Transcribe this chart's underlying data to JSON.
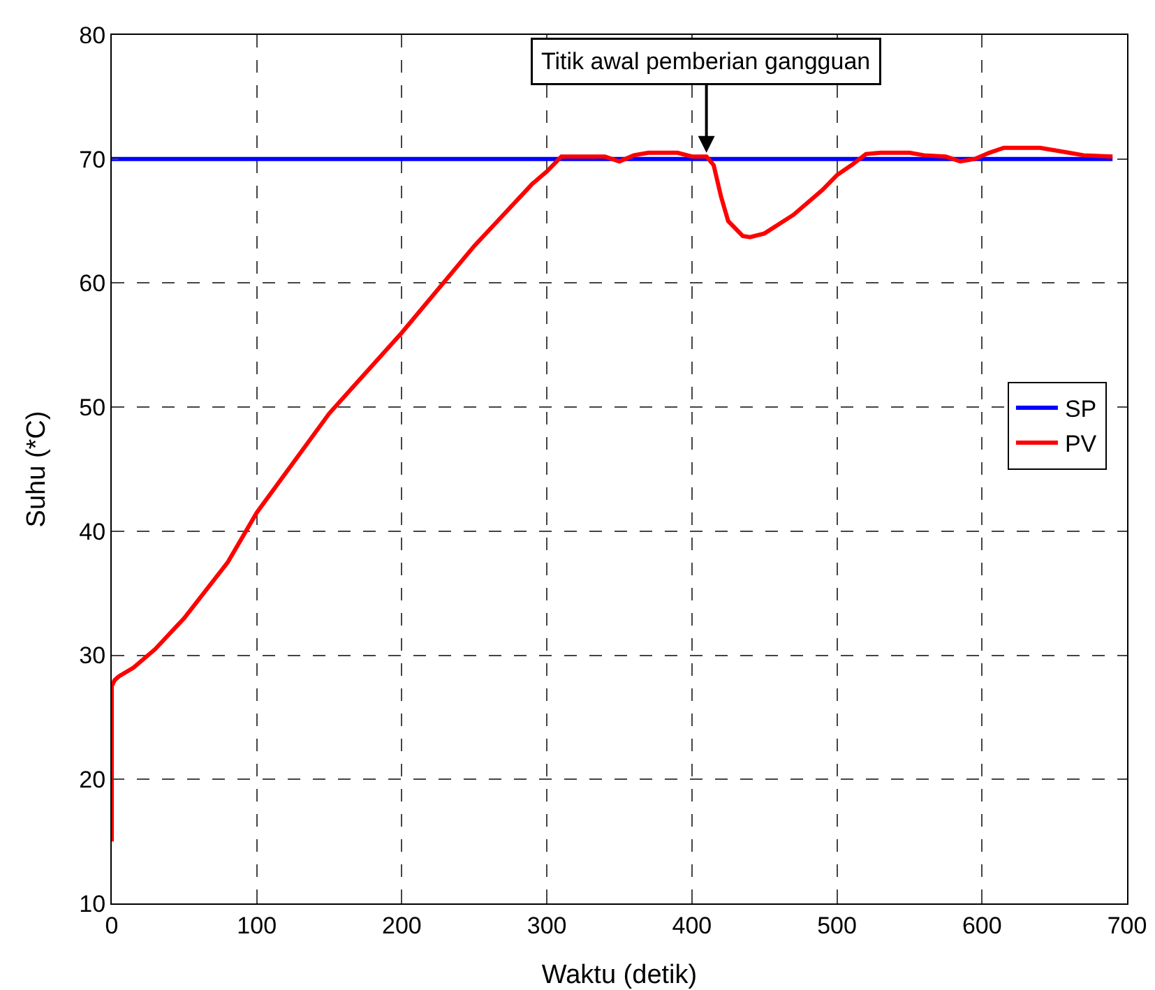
{
  "chart_data": {
    "type": "line",
    "xlabel": "Waktu (detik)",
    "ylabel": "Suhu (*C)",
    "xlim": [
      0,
      700
    ],
    "ylim": [
      10,
      80
    ],
    "xticks": [
      0,
      100,
      200,
      300,
      400,
      500,
      600,
      700
    ],
    "yticks": [
      10,
      20,
      30,
      40,
      50,
      60,
      70,
      80
    ],
    "grid": true,
    "legend": "right",
    "marker": "none",
    "line_style": "solid",
    "annotations": [
      {
        "text": "Titik awal pemberian gangguan",
        "x": 410,
        "y": 70.5
      }
    ],
    "series": [
      {
        "name": "SP",
        "color": "#0000ff",
        "x": [
          0,
          690
        ],
        "values": [
          70,
          70
        ]
      },
      {
        "name": "PV",
        "color": "#ff0000",
        "x": [
          0,
          0,
          2,
          5,
          15,
          30,
          50,
          80,
          100,
          150,
          200,
          250,
          270,
          290,
          300,
          310,
          340,
          350,
          360,
          370,
          390,
          400,
          410,
          415,
          420,
          425,
          435,
          440,
          450,
          470,
          490,
          500,
          510,
          520,
          530,
          550,
          560,
          575,
          585,
          595,
          605,
          615,
          640,
          655,
          670,
          690
        ],
        "values": [
          15,
          27.5,
          28,
          28.3,
          29,
          30.5,
          33,
          37.5,
          41.5,
          49.5,
          56,
          63,
          65.5,
          68,
          69,
          70.2,
          70.2,
          69.8,
          70.3,
          70.5,
          70.5,
          70.2,
          70.2,
          69.5,
          67,
          65,
          63.8,
          63.7,
          64,
          65.5,
          67.5,
          68.7,
          69.5,
          70.4,
          70.5,
          70.5,
          70.3,
          70.2,
          69.8,
          70,
          70.5,
          70.9,
          70.9,
          70.6,
          70.3,
          70.2
        ]
      }
    ]
  }
}
